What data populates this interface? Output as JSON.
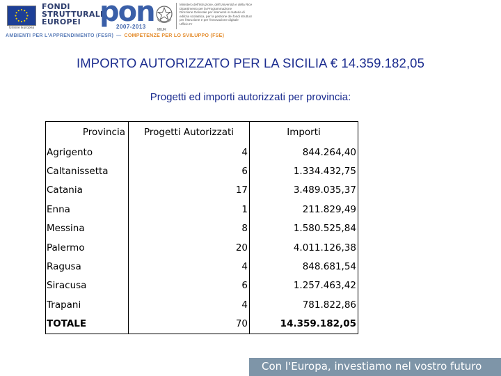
{
  "banner": {
    "eu_caption": "Unione Europea",
    "fondi_lines": [
      "FONDI",
      "STRUTTURALI",
      "EUROPEI"
    ],
    "pon_word": "pon",
    "pon_years": "2007-2013",
    "emblem_caption": "MIUR",
    "ministry_lines": [
      "Ministero dell'Istruzione, dell'Università e della Ricerca",
      "Dipartimento per la Programmazione",
      "Direzione Generale per interventi in materia di",
      "edilizia scolastica, per la gestione dei fondi strutturali",
      "per l'istruzione e per l'innovazione digitale",
      "Ufficio IV"
    ],
    "subbanner_fesr": "AMBIENTI PER L'APPRENDIMENTO (FESR)",
    "subbanner_dash": "—",
    "subbanner_fse": "COMPETENZE PER LO SVILUPPO (FSE)",
    "colors": {
      "fesr": "#5b7db8",
      "fse": "#e48b2a",
      "pon": "#3a5fa8"
    }
  },
  "title": "IMPORTO AUTORIZZATO PER LA SICILIA € 14.359.182,05",
  "subtitle": "Progetti ed importi autorizzati per provincia:",
  "table": {
    "headers": [
      "Provincia",
      "Progetti Autorizzati",
      "Importi"
    ],
    "rows": [
      [
        "Agrigento",
        "4",
        "844.264,40"
      ],
      [
        "Caltanissetta",
        "6",
        "1.334.432,75"
      ],
      [
        "Catania",
        "17",
        "3.489.035,37"
      ],
      [
        "Enna",
        "1",
        "211.829,49"
      ],
      [
        "Messina",
        "8",
        "1.580.525,84"
      ],
      [
        "Palermo",
        "20",
        "4.011.126,38"
      ],
      [
        "Ragusa",
        "4",
        "848.681,54"
      ],
      [
        "Siracusa",
        "6",
        "1.257.463,42"
      ],
      [
        "Trapani",
        "4",
        "781.822,86"
      ]
    ],
    "total": [
      "TOTALE",
      "70",
      "14.359.182,05"
    ]
  },
  "footer": {
    "slogan": "Con l'Europa, investiamo nel vostro futuro",
    "color": "#7e95a8"
  }
}
